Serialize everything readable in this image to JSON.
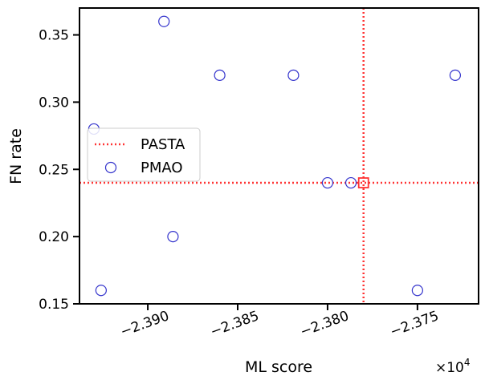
{
  "chart_data": {
    "type": "scatter",
    "xlabel": "ML score",
    "ylabel": "FN rate",
    "x_offset_label": "×10",
    "x_offset_exponent": "4",
    "xlim": [
      -23938,
      -23716
    ],
    "ylim": [
      0.15,
      0.37
    ],
    "xticks": [
      -23900,
      -23850,
      -23800,
      -23750
    ],
    "xtick_labels": [
      "−2.390",
      "−2.385",
      "−2.380",
      "−2.375"
    ],
    "yticks": [
      0.15,
      0.2,
      0.25,
      0.3,
      0.35
    ],
    "ytick_labels": [
      "0.15",
      "0.20",
      "0.25",
      "0.30",
      "0.35"
    ],
    "grid": false,
    "legend_position": "center-left",
    "series": [
      {
        "name": "PMAO",
        "marker": "open-circle",
        "color": "#3333cc",
        "points": [
          {
            "x": -23930,
            "y": 0.28
          },
          {
            "x": -23926,
            "y": 0.16
          },
          {
            "x": -23891,
            "y": 0.36
          },
          {
            "x": -23886,
            "y": 0.2
          },
          {
            "x": -23860,
            "y": 0.32
          },
          {
            "x": -23819,
            "y": 0.32
          },
          {
            "x": -23800,
            "y": 0.24
          },
          {
            "x": -23787,
            "y": 0.24
          },
          {
            "x": -23750,
            "y": 0.16
          },
          {
            "x": -23729,
            "y": 0.32
          }
        ]
      }
    ],
    "reference": {
      "name": "PASTA",
      "color": "#ff3333",
      "line_style": "dotted",
      "x": -23780,
      "y": 0.24,
      "marker": "open-square"
    }
  }
}
